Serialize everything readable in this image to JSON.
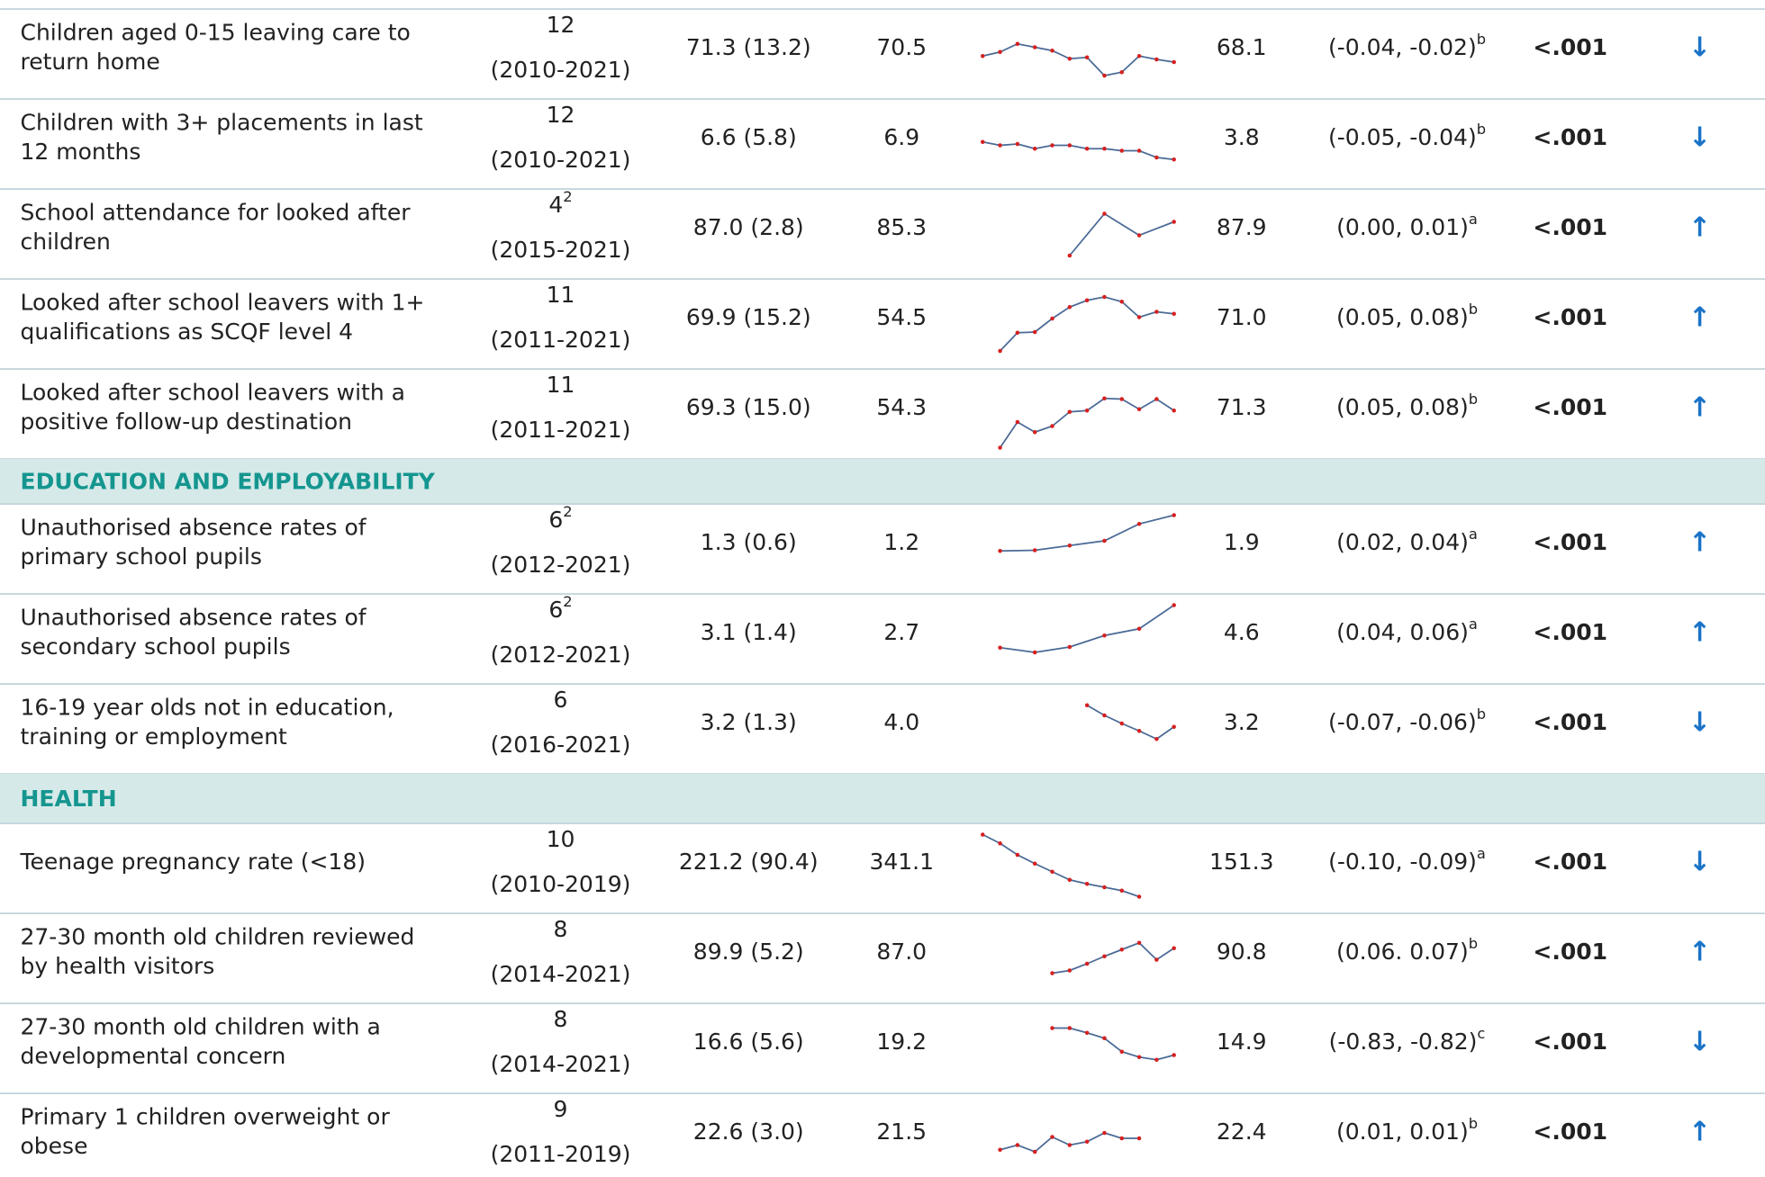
{
  "table": {
    "rows": [
      {
        "indicator": [
          "Children aged 0-15 leaving care to",
          "return home"
        ],
        "n": "12",
        "n_sup": null,
        "years": "(2010-2021)",
        "mean_sd": "71.3 (13.2)",
        "first": "70.5",
        "trend": [
          47,
          53,
          65,
          60,
          55,
          43,
          45,
          18,
          23,
          47,
          42,
          38
        ],
        "latest": "68.1",
        "ci": "(-0.04, -0.02)",
        "ci_sup": "b",
        "p": "<.001",
        "direction": "↓"
      },
      {
        "indicator": [
          "Children with 3+ placements in last",
          "12 months"
        ],
        "n": "12",
        "n_sup": null,
        "years": "(2010-2021)",
        "mean_sd": "6.6 (5.8)",
        "first": "6.9",
        "trend": [
          53,
          48,
          50,
          43,
          48,
          48,
          43,
          43,
          40,
          40,
          30,
          27
        ],
        "latest": "3.8",
        "ci": "(-0.05, -0.04)",
        "ci_sup": "b",
        "p": "<.001",
        "direction": "↓"
      },
      {
        "indicator": [
          "School attendance for looked after",
          "children"
        ],
        "n": "4",
        "n_sup": "2",
        "years": "(2015-2021)",
        "mean_sd": "87.0 (2.8)",
        "first": "85.3",
        "trend": [
          null,
          null,
          null,
          null,
          null,
          18,
          null,
          80,
          null,
          48,
          null,
          68
        ],
        "latest": "87.9",
        "ci": "(0.00, 0.01)",
        "ci_sup": "a",
        "p": "<.001",
        "direction": "↑"
      },
      {
        "indicator": [
          "Looked after school leavers with 1+",
          "qualifications as SCQF level 4"
        ],
        "n": "11",
        "n_sup": null,
        "years": "(2011-2021)",
        "mean_sd": "69.9 (15.2)",
        "first": "54.5",
        "trend": [
          null,
          10,
          37,
          38,
          58,
          75,
          85,
          90,
          83,
          60,
          68,
          65
        ],
        "latest": "71.0",
        "ci": "(0.05, 0.08)",
        "ci_sup": "b",
        "p": "<.001",
        "direction": "↑"
      },
      {
        "indicator": [
          "Looked after school leavers with a",
          "positive follow-up destination"
        ],
        "n": "11",
        "n_sup": null,
        "years": "(2011-2021)",
        "mean_sd": "69.3 (15.0)",
        "first": "54.3",
        "trend": [
          null,
          0,
          38,
          23,
          32,
          53,
          55,
          73,
          72,
          57,
          72,
          55
        ],
        "latest": "71.3",
        "ci": "(0.05, 0.08)",
        "ci_sup": "b",
        "p": "<.001",
        "direction": "↑"
      },
      {
        "section": "EDUCATION AND EMPLOYABILITY"
      },
      {
        "indicator": [
          "Unauthorised absence rates of",
          "primary school pupils"
        ],
        "n": "6",
        "n_sup": "2",
        "years": "(2012-2021)",
        "mean_sd": "1.3 (0.6)",
        "first": "1.2",
        "trend": [
          null,
          47,
          null,
          48,
          null,
          55,
          null,
          62,
          null,
          87,
          null,
          100
        ],
        "latest": "1.9",
        "ci": "(0.02, 0.04)",
        "ci_sup": "a",
        "p": "<.001",
        "direction": "↑"
      },
      {
        "indicator": [
          "Unauthorised absence rates of",
          "secondary school pupils"
        ],
        "n": "6",
        "n_sup": "2",
        "years": "(2012-2021)",
        "mean_sd": "3.1 (1.4)",
        "first": "2.7",
        "trend": [
          null,
          37,
          null,
          30,
          null,
          38,
          null,
          55,
          null,
          65,
          null,
          100
        ],
        "latest": "4.6",
        "ci": "(0.04, 0.06)",
        "ci_sup": "a",
        "p": "<.001",
        "direction": "↑"
      },
      {
        "indicator": [
          "16-19 year olds not in education,",
          "training or employment"
        ],
        "n": "6",
        "n_sup": null,
        "years": "(2016-2021)",
        "mean_sd": "3.2 (1.3)",
        "first": "4.0",
        "trend": [
          null,
          null,
          null,
          null,
          null,
          null,
          85,
          70,
          58,
          47,
          35,
          53
        ],
        "latest": "3.2",
        "ci": "(-0.07, -0.06)",
        "ci_sup": "b",
        "p": "<.001",
        "direction": "↓"
      },
      {
        "section": "HEALTH"
      },
      {
        "indicator": [
          "Teenage pregnancy rate (<18)"
        ],
        "n": "10",
        "n_sup": null,
        "years": "(2010-2019)",
        "mean_sd": "221.2 (90.4)",
        "first": "341.1",
        "trend": [
          100,
          87,
          70,
          57,
          45,
          33,
          27,
          22,
          17,
          8,
          null,
          null
        ],
        "latest": "151.3",
        "ci": "(-0.10, -0.09)",
        "ci_sup": "a",
        "p": "<.001",
        "direction": "↓"
      },
      {
        "indicator": [
          "27-30 month old children reviewed",
          "by health visitors"
        ],
        "n": "8",
        "n_sup": null,
        "years": "(2014-2021)",
        "mean_sd": "89.9 (5.2)",
        "first": "87.0",
        "trend": [
          null,
          null,
          null,
          null,
          28,
          32,
          42,
          53,
          63,
          73,
          48,
          65
        ],
        "latest": "90.8",
        "ci": "(0.06. 0.07)",
        "ci_sup": "b",
        "p": "<.001",
        "direction": "↑"
      },
      {
        "indicator": [
          "27-30 month old children with a",
          "developmental concern"
        ],
        "n": "8",
        "n_sup": null,
        "years": "(2014-2021)",
        "mean_sd": "16.6 (5.6)",
        "first": "19.2",
        "trend": [
          null,
          null,
          null,
          null,
          80,
          80,
          73,
          65,
          45,
          37,
          33,
          40
        ],
        "latest": "14.9",
        "ci": "(-0.83, -0.82)",
        "ci_sup": "c",
        "p": "<.001",
        "direction": "↓"
      },
      {
        "indicator": [
          "Primary 1 children overweight or",
          "obese"
        ],
        "n": "9",
        "n_sup": null,
        "years": "(2011-2019)",
        "mean_sd": "22.6 (3.0)",
        "first": "21.5",
        "trend": [
          null,
          33,
          40,
          30,
          52,
          40,
          45,
          58,
          50,
          50,
          null,
          null
        ],
        "latest": "22.4",
        "ci": "(0.01, 0.01)",
        "ci_sup": "b",
        "p": "<.001",
        "direction": "↑"
      }
    ]
  }
}
